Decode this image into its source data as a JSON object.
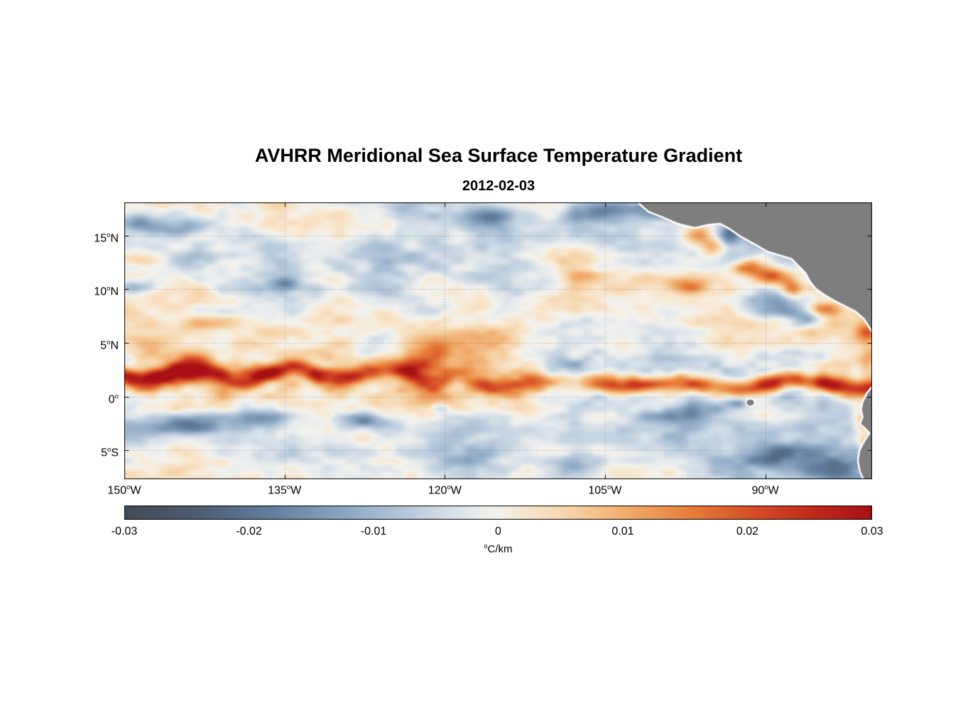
{
  "chart_data": {
    "type": "heatmap",
    "title": "AVHRR Meridional Sea Surface Temperature Gradient",
    "date": "2012-02-03",
    "units_sup": "o",
    "units_text": "C/km",
    "deg_sup": "o",
    "lon_range": [
      -150,
      -80
    ],
    "lat_range": [
      -7.7,
      18.1
    ],
    "value_range": [
      -0.03,
      0.03
    ],
    "grid": "dotted",
    "land_color": "#7e7e7e",
    "coast_color": "#ffffff",
    "x_ticks": [
      {
        "deg": "150",
        "hemi": "W",
        "lon": -150
      },
      {
        "deg": "135",
        "hemi": "W",
        "lon": -135
      },
      {
        "deg": "120",
        "hemi": "W",
        "lon": -120
      },
      {
        "deg": "105",
        "hemi": "W",
        "lon": -105
      },
      {
        "deg": "90",
        "hemi": "W",
        "lon": -90
      }
    ],
    "y_ticks": [
      {
        "deg": "15",
        "hemi": "N",
        "lat": 15
      },
      {
        "deg": "10",
        "hemi": "N",
        "lat": 10
      },
      {
        "deg": "5",
        "hemi": "N",
        "lat": 5
      },
      {
        "deg": "0",
        "hemi": "",
        "lat": 0
      },
      {
        "deg": "5",
        "hemi": "S",
        "lat": -5
      }
    ],
    "colorbar": {
      "min": -0.03,
      "max": 0.03,
      "ticks": [
        "-0.03",
        "-0.02",
        "-0.01",
        "0",
        "0.01",
        "0.02",
        "0.03"
      ]
    },
    "colormap": [
      {
        "t": 0.0,
        "c": "#414c58"
      },
      {
        "t": 0.1,
        "c": "#4d5d72"
      },
      {
        "t": 0.2,
        "c": "#64809f"
      },
      {
        "t": 0.3,
        "c": "#8fa9c4"
      },
      {
        "t": 0.4,
        "c": "#c2d2e0"
      },
      {
        "t": 0.47,
        "c": "#e8ecee"
      },
      {
        "t": 0.5,
        "c": "#f4f2ec"
      },
      {
        "t": 0.53,
        "c": "#f7e9d4"
      },
      {
        "t": 0.6,
        "c": "#f6d2a4"
      },
      {
        "t": 0.68,
        "c": "#f0a867"
      },
      {
        "t": 0.76,
        "c": "#e67c38"
      },
      {
        "t": 0.84,
        "c": "#d54e27"
      },
      {
        "t": 0.92,
        "c": "#c02a1c"
      },
      {
        "t": 1.0,
        "c": "#a81016"
      }
    ],
    "features": {
      "bands": [
        {
          "name": "north-equatorial-front-west",
          "lon": [
            -154,
            -117
          ],
          "lat": 2.1,
          "width": 0.9,
          "amp": 0.019,
          "meander_amp": 0.7,
          "meander_wl": 9,
          "phase": 0.5
        },
        {
          "name": "north-equatorial-front-east",
          "lon": [
            -119,
            -76
          ],
          "lat": 1.1,
          "width": 0.8,
          "amp": 0.02,
          "meander_amp": 0.35,
          "meander_wl": 11,
          "phase": 2.0
        },
        {
          "name": "itcz-warm-zone",
          "lon": [
            -154,
            -76
          ],
          "lat": 5.5,
          "width": 2.8,
          "amp": 0.0045,
          "meander_amp": 0.5,
          "meander_wl": 25,
          "phase": 1.0
        },
        {
          "name": "south-equatorial-cool-zone",
          "lon": [
            -154,
            -76
          ],
          "lat": -4.5,
          "width": 3.5,
          "amp": -0.005,
          "meander_amp": 0.5,
          "meander_wl": 30,
          "phase": 2.0
        },
        {
          "name": "north-tropical-cool-zone",
          "lon": [
            -154,
            -76
          ],
          "lat": 13.5,
          "width": 4.0,
          "amp": -0.004,
          "meander_amp": 0.6,
          "meander_wl": 28,
          "phase": 0.0
        }
      ],
      "blobs": [
        {
          "name": "eq-front-red-144w",
          "lon": -144.5,
          "lat": 2.0,
          "rx": 2.5,
          "ry": 0.8,
          "amp": 0.01
        },
        {
          "name": "eq-front-red-137w",
          "lon": -137.0,
          "lat": 2.4,
          "rx": 3.0,
          "ry": 0.9,
          "amp": 0.013
        },
        {
          "name": "eq-front-red-129w",
          "lon": -129.5,
          "lat": 2.2,
          "rx": 2.0,
          "ry": 0.7,
          "amp": 0.008
        },
        {
          "name": "eq-front-red-122w",
          "lon": -122.5,
          "lat": 2.9,
          "rx": 2.0,
          "ry": 0.9,
          "amp": 0.013
        },
        {
          "name": "eq-front-bulge-121w",
          "lon": -120.8,
          "lat": 4.1,
          "rx": 1.2,
          "ry": 0.7,
          "amp": 0.01
        },
        {
          "name": "eq-front-red-111w",
          "lon": -111.0,
          "lat": 1.3,
          "rx": 2.5,
          "ry": 0.7,
          "amp": 0.008
        },
        {
          "name": "eq-front-red-103w",
          "lon": -103.0,
          "lat": 1.2,
          "rx": 3.5,
          "ry": 0.8,
          "amp": 0.013
        },
        {
          "name": "eq-front-red-96w",
          "lon": -96.0,
          "lat": 1.0,
          "rx": 3.0,
          "ry": 0.8,
          "amp": 0.013
        },
        {
          "name": "eq-front-red-89w",
          "lon": -89.5,
          "lat": 1.3,
          "rx": 2.0,
          "ry": 0.7,
          "amp": 0.01
        },
        {
          "name": "eq-front-red-84w",
          "lon": -84.0,
          "lat": 1.2,
          "rx": 2.0,
          "ry": 0.9,
          "amp": 0.014
        },
        {
          "name": "coast-red-80w-6n",
          "lon": -80.5,
          "lat": 6.0,
          "rx": 1.2,
          "ry": 1.0,
          "amp": 0.016
        },
        {
          "name": "coast-red-80w-3n",
          "lon": -80.3,
          "lat": 3.0,
          "rx": 1.0,
          "ry": 1.2,
          "amp": 0.009
        },
        {
          "name": "tehuantepec-red-a",
          "lon": -96.3,
          "lat": 15.0,
          "rx": 1.4,
          "ry": 0.8,
          "amp": 0.018
        },
        {
          "name": "tehuantepec-red-b",
          "lon": -94.8,
          "lat": 13.9,
          "rx": 1.1,
          "ry": 0.9,
          "amp": 0.016
        },
        {
          "name": "papagayo-red-a",
          "lon": -91.5,
          "lat": 12.0,
          "rx": 1.6,
          "ry": 0.8,
          "amp": 0.018
        },
        {
          "name": "papagayo-red-b",
          "lon": -89.3,
          "lat": 11.2,
          "rx": 1.4,
          "ry": 0.8,
          "amp": 0.016
        },
        {
          "name": "papagayo-red-c",
          "lon": -87.6,
          "lat": 10.0,
          "rx": 1.0,
          "ry": 0.9,
          "amp": 0.018
        },
        {
          "name": "panama-coast-orange",
          "lon": -84.8,
          "lat": 8.2,
          "rx": 1.5,
          "ry": 0.6,
          "amp": 0.012
        },
        {
          "name": "ecuador-red",
          "lon": -80.8,
          "lat": -2.3,
          "rx": 1.0,
          "ry": 1.1,
          "amp": 0.018
        },
        {
          "name": "peru-orange",
          "lon": -80.6,
          "lat": -4.2,
          "rx": 0.8,
          "ry": 0.8,
          "amp": 0.011
        },
        {
          "name": "nw-orange-arc",
          "lon": -143.0,
          "lat": 6.8,
          "rx": 3.0,
          "ry": 0.8,
          "amp": 0.009
        },
        {
          "name": "west-orange-5n",
          "lon": -147.5,
          "lat": 5.0,
          "rx": 1.5,
          "ry": 0.7,
          "amp": 0.008
        },
        {
          "name": "top-orange-121w",
          "lon": -121.5,
          "lat": 17.6,
          "rx": 1.5,
          "ry": 0.6,
          "amp": 0.01
        },
        {
          "name": "orange-107w-11n",
          "lon": -107.0,
          "lat": 11.2,
          "rx": 2.2,
          "ry": 0.8,
          "amp": 0.008
        },
        {
          "name": "orange-97w-10n",
          "lon": -97.5,
          "lat": 10.3,
          "rx": 2.0,
          "ry": 0.7,
          "amp": 0.009
        },
        {
          "name": "seq-blue-144w",
          "lon": -144.0,
          "lat": -2.7,
          "rx": 3.5,
          "ry": 0.9,
          "amp": -0.016
        },
        {
          "name": "seq-blue-136w",
          "lon": -136.5,
          "lat": -2.1,
          "rx": 2.5,
          "ry": 0.8,
          "amp": -0.013
        },
        {
          "name": "seq-blue-127w",
          "lon": -127.5,
          "lat": -2.3,
          "rx": 3.0,
          "ry": 0.8,
          "amp": -0.015
        },
        {
          "name": "blue-spot-120w",
          "lon": -120.5,
          "lat": -1.0,
          "rx": 0.9,
          "ry": 0.5,
          "amp": -0.01
        },
        {
          "name": "nw-blue-corner",
          "lon": -148.5,
          "lat": 16.3,
          "rx": 2.0,
          "ry": 1.0,
          "amp": -0.013
        },
        {
          "name": "nw-blue-145w",
          "lon": -145.0,
          "lat": 15.5,
          "rx": 2.0,
          "ry": 0.7,
          "amp": -0.009
        },
        {
          "name": "left-edge-blue-10n",
          "lon": -149.0,
          "lat": 10.2,
          "rx": 1.5,
          "ry": 0.6,
          "amp": -0.01
        },
        {
          "name": "blue-spot-135w-10n",
          "lon": -135.0,
          "lat": 10.5,
          "rx": 1.2,
          "ry": 0.6,
          "amp": -0.012
        },
        {
          "name": "top-blue-122w",
          "lon": -122.5,
          "lat": 17.8,
          "rx": 3.0,
          "ry": 1.3,
          "amp": -0.016
        },
        {
          "name": "top-blue-115w",
          "lon": -115.5,
          "lat": 16.8,
          "rx": 2.0,
          "ry": 1.0,
          "amp": -0.011
        },
        {
          "name": "top-blue-105w",
          "lon": -105.5,
          "lat": 17.2,
          "rx": 3.5,
          "ry": 1.5,
          "amp": -0.015
        },
        {
          "name": "top-blue-99w",
          "lon": -99.5,
          "lat": 17.5,
          "rx": 2.0,
          "ry": 1.0,
          "amp": -0.012
        },
        {
          "name": "tehuantepec-blue",
          "lon": -93.2,
          "lat": 15.2,
          "rx": 1.2,
          "ry": 0.9,
          "amp": -0.015
        },
        {
          "name": "costa-rica-dome-blue",
          "lon": -89.5,
          "lat": 8.5,
          "rx": 2.8,
          "ry": 1.8,
          "amp": -0.019
        },
        {
          "name": "dome-blue-hook",
          "lon": -86.5,
          "lat": 7.3,
          "rx": 1.5,
          "ry": 1.0,
          "amp": -0.012
        },
        {
          "name": "galapagos-blue",
          "lon": -92.5,
          "lat": -0.6,
          "rx": 0.8,
          "ry": 0.5,
          "amp": -0.012
        },
        {
          "name": "blue-97w-south",
          "lon": -97.0,
          "lat": -1.8,
          "rx": 2.5,
          "ry": 0.7,
          "amp": -0.008
        },
        {
          "name": "blue-89w-5s",
          "lon": -89.0,
          "lat": -5.5,
          "rx": 2.5,
          "ry": 1.0,
          "amp": -0.01
        },
        {
          "name": "blue-83w-7s",
          "lon": -83.5,
          "lat": -6.8,
          "rx": 2.5,
          "ry": 1.2,
          "amp": -0.012
        },
        {
          "name": "blue-108w-6s",
          "lon": -108.0,
          "lat": -6.5,
          "rx": 3.0,
          "ry": 1.0,
          "amp": -0.007
        }
      ]
    },
    "noise": {
      "octaves": [
        {
          "wl_x": 9.0,
          "wl_y": 3.2,
          "amp": 0.0048
        },
        {
          "wl_x": 4.5,
          "wl_y": 1.8,
          "amp": 0.0042
        },
        {
          "wl_x": 2.2,
          "wl_y": 1.0,
          "amp": 0.0032
        },
        {
          "wl_x": 1.1,
          "wl_y": 0.6,
          "amp": 0.0018
        }
      ],
      "equator_boost": 0.6
    },
    "land": {
      "polygons": [
        {
          "name": "central-america",
          "points": [
            [
              -102.2,
              18.6
            ],
            [
              -101.6,
              17.9
            ],
            [
              -100.9,
              17.3
            ],
            [
              -99.6,
              16.8
            ],
            [
              -98.2,
              16.2
            ],
            [
              -96.6,
              15.8
            ],
            [
              -95.3,
              16.1
            ],
            [
              -94.2,
              16.2
            ],
            [
              -93.3,
              15.7
            ],
            [
              -92.3,
              15.0
            ],
            [
              -91.0,
              14.3
            ],
            [
              -89.8,
              13.6
            ],
            [
              -88.5,
              13.2
            ],
            [
              -87.5,
              12.9
            ],
            [
              -87.0,
              12.4
            ],
            [
              -86.2,
              11.6
            ],
            [
              -85.7,
              10.7
            ],
            [
              -85.2,
              10.1
            ],
            [
              -84.5,
              9.6
            ],
            [
              -83.5,
              9.0
            ],
            [
              -82.5,
              8.5
            ],
            [
              -81.5,
              8.0
            ],
            [
              -80.7,
              7.3
            ],
            [
              -80.2,
              6.5
            ],
            [
              -79.8,
              5.8
            ],
            [
              -79.0,
              5.6
            ],
            [
              -79.0,
              18.6
            ]
          ]
        },
        {
          "name": "south-america",
          "points": [
            [
              -79.3,
              1.2
            ],
            [
              -80.0,
              0.8
            ],
            [
              -80.4,
              0.3
            ],
            [
              -80.8,
              -0.5
            ],
            [
              -80.95,
              -1.2
            ],
            [
              -80.8,
              -1.9
            ],
            [
              -81.05,
              -2.5
            ],
            [
              -80.5,
              -3.0
            ],
            [
              -80.15,
              -3.4
            ],
            [
              -80.6,
              -4.1
            ],
            [
              -81.1,
              -5.0
            ],
            [
              -81.25,
              -6.0
            ],
            [
              -81.05,
              -7.0
            ],
            [
              -80.6,
              -7.9
            ],
            [
              -80.2,
              -8.5
            ],
            [
              -79.3,
              -8.5
            ]
          ]
        }
      ],
      "islands": [
        {
          "name": "galapagos",
          "lon": -91.4,
          "lat": -0.55,
          "r": 0.35
        }
      ]
    }
  }
}
